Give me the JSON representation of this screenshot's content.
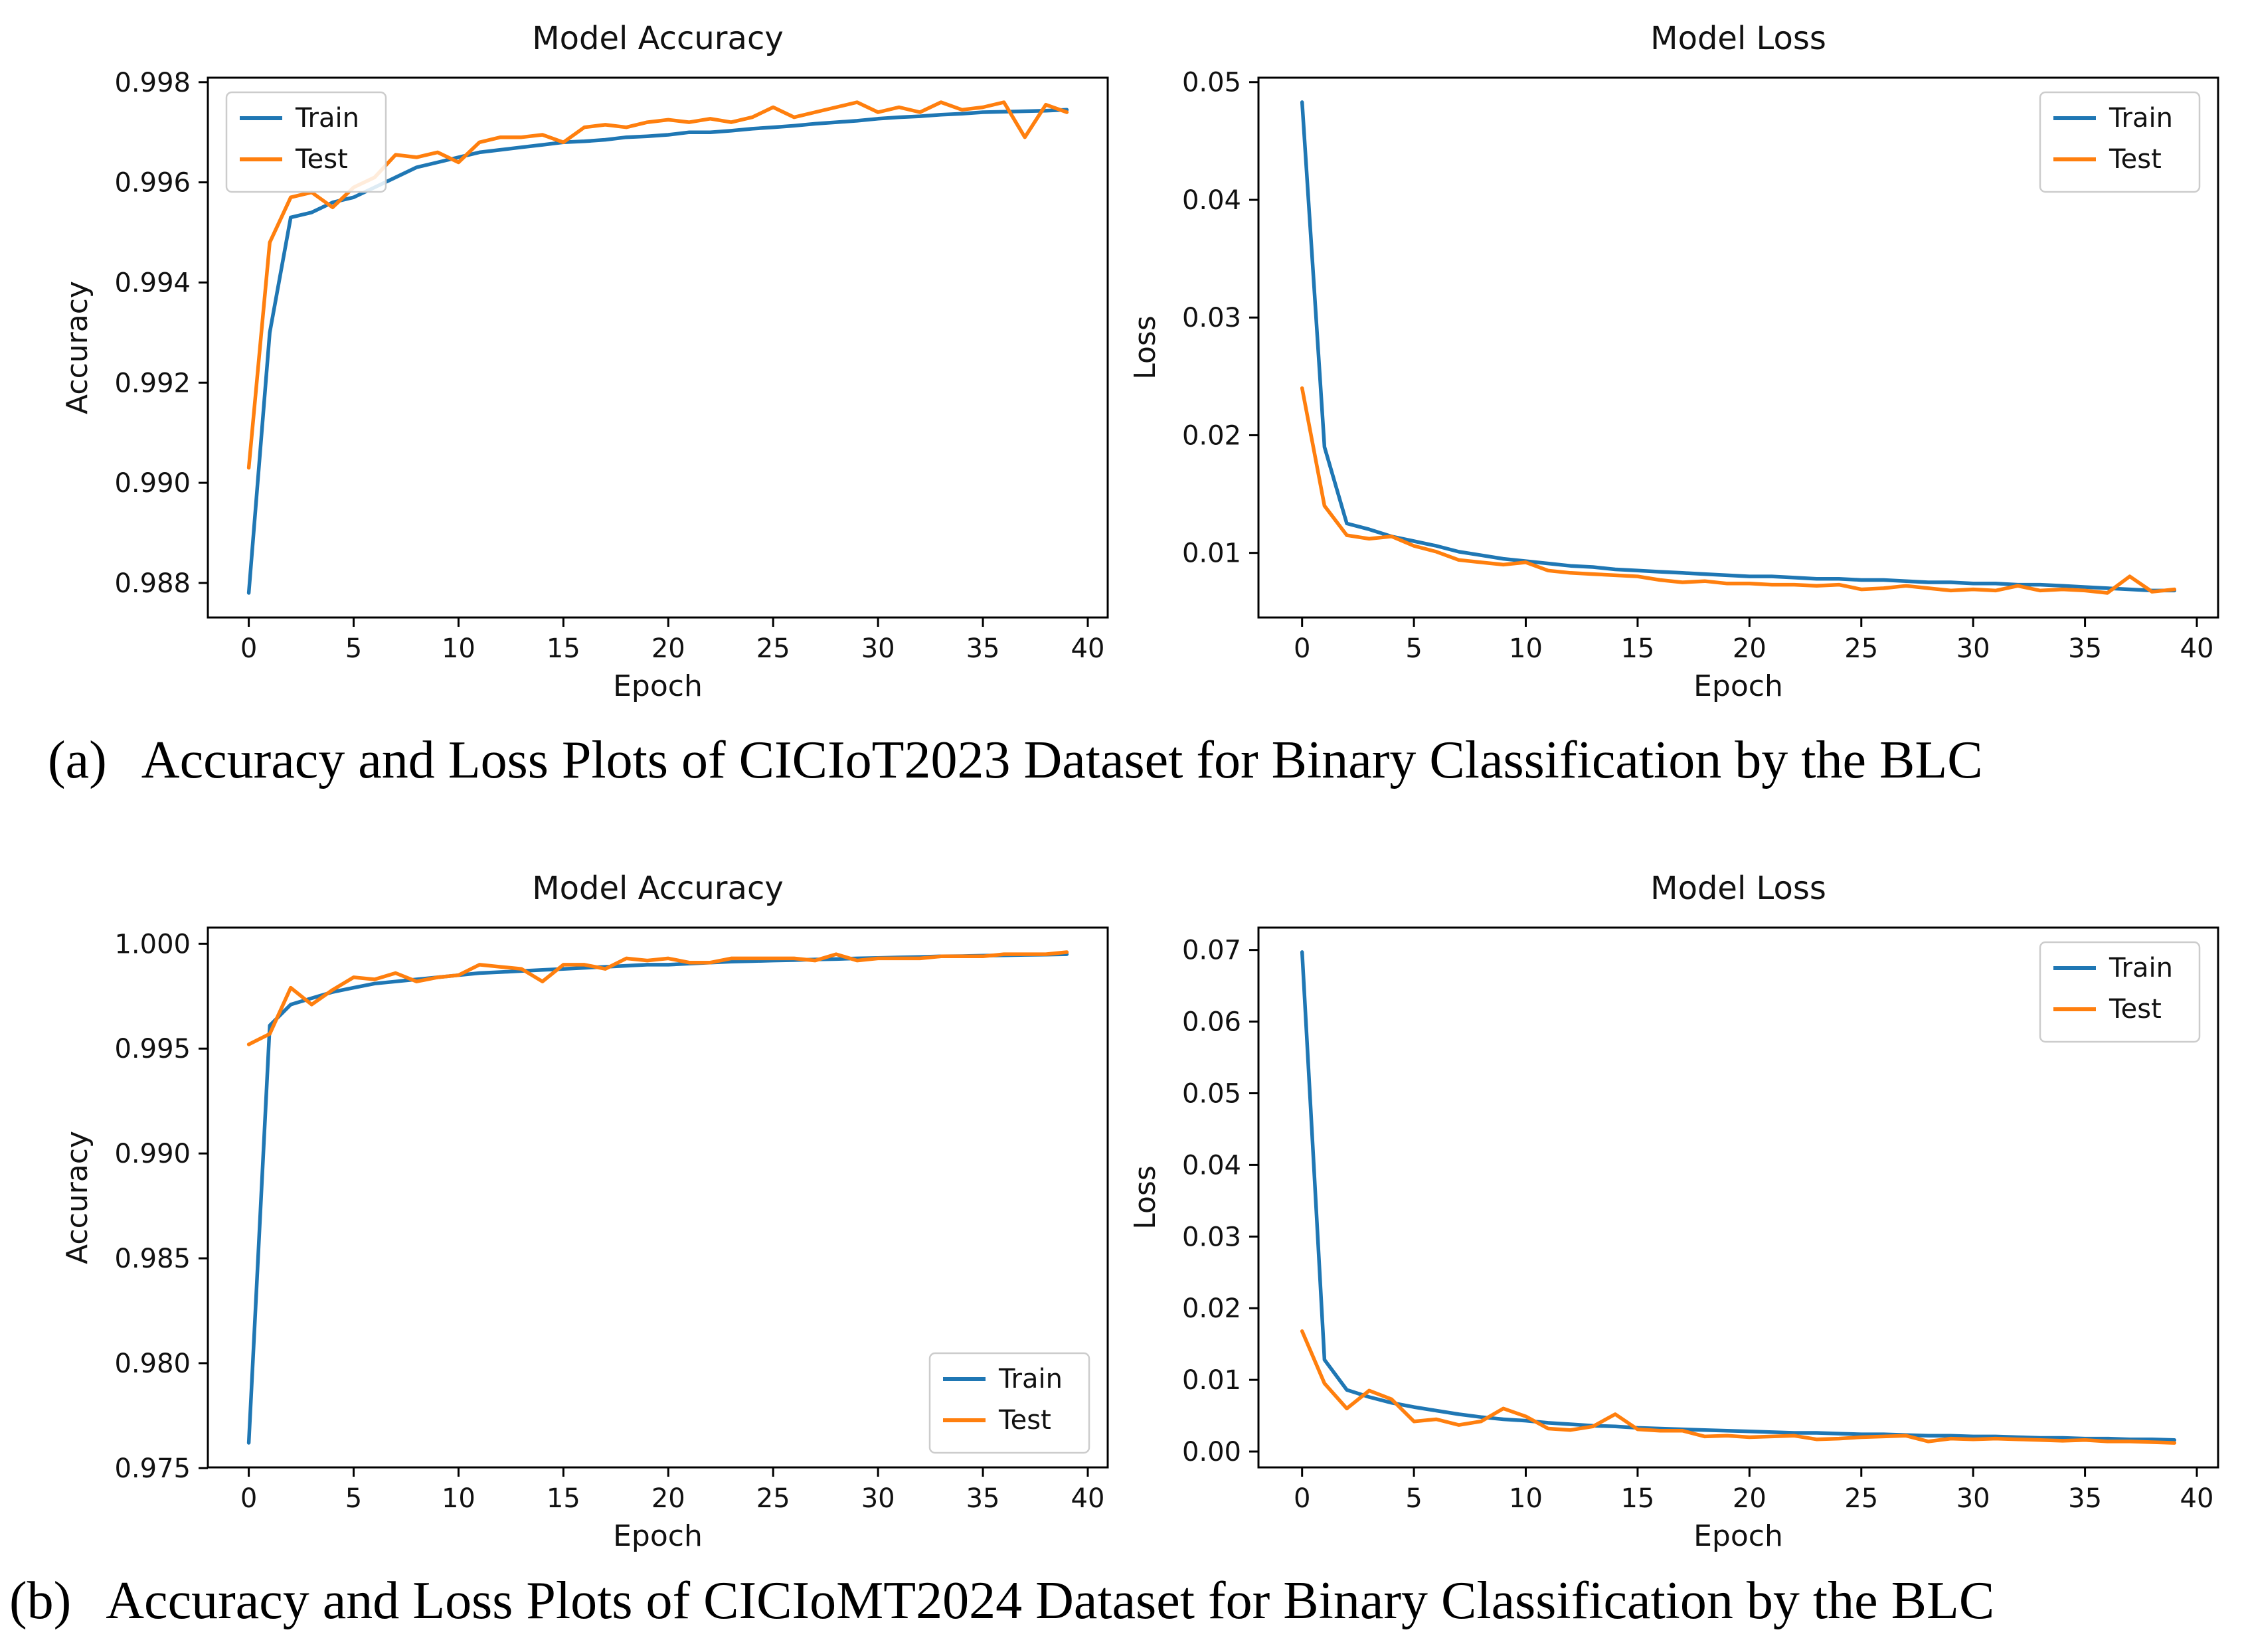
{
  "page": {
    "background": "#ffffff"
  },
  "colors": {
    "train": "#1f77b4",
    "test": "#ff7f0e",
    "spine": "#000000",
    "legend_border": "#cccccc"
  },
  "captions": {
    "a": {
      "label": "(a)",
      "text": "Accuracy and Loss Plots of CICIoT2023 Dataset for Binary Classification by the BLC"
    },
    "b": {
      "label": "(b)",
      "text": "Accuracy and Loss Plots of CICIoMT2024 Dataset for Binary Classification by the BLC"
    }
  },
  "epochs": [
    0,
    1,
    2,
    3,
    4,
    5,
    6,
    7,
    8,
    9,
    10,
    11,
    12,
    13,
    14,
    15,
    16,
    17,
    18,
    19,
    20,
    21,
    22,
    23,
    24,
    25,
    26,
    27,
    28,
    29,
    30,
    31,
    32,
    33,
    34,
    35,
    36,
    37,
    38,
    39
  ],
  "chart_data": [
    {
      "name": "accuracy-ciciot2023",
      "type": "line",
      "title": "Model Accuracy",
      "xlabel": "Epoch",
      "ylabel": "Accuracy",
      "xlim": [
        -1.95,
        40.95
      ],
      "ylim": [
        0.98731,
        0.99809
      ],
      "xticks": [
        0,
        5,
        10,
        15,
        20,
        25,
        30,
        35,
        40
      ],
      "yticks": [
        0.988,
        0.99,
        0.992,
        0.994,
        0.996,
        0.998
      ],
      "ytick_decimals": 3,
      "grid": false,
      "legend_pos": "upper-left",
      "series": [
        {
          "name": "Train",
          "color": "#1f77b4",
          "values": [
            0.9878,
            0.993,
            0.9953,
            0.9954,
            0.9956,
            0.9957,
            0.9959,
            0.9961,
            0.9963,
            0.9964,
            0.9965,
            0.9966,
            0.99665,
            0.9967,
            0.99675,
            0.9968,
            0.99682,
            0.99685,
            0.9969,
            0.99692,
            0.99695,
            0.997,
            0.997,
            0.99703,
            0.99707,
            0.9971,
            0.99713,
            0.99717,
            0.9972,
            0.99723,
            0.99727,
            0.9973,
            0.99732,
            0.99735,
            0.99737,
            0.9974,
            0.99741,
            0.99742,
            0.99743,
            0.99745
          ]
        },
        {
          "name": "Test",
          "color": "#ff7f0e",
          "values": [
            0.9903,
            0.9948,
            0.9957,
            0.9958,
            0.9955,
            0.9959,
            0.9961,
            0.99655,
            0.9965,
            0.9966,
            0.9964,
            0.9968,
            0.9969,
            0.9969,
            0.99695,
            0.9968,
            0.9971,
            0.99715,
            0.9971,
            0.9972,
            0.99725,
            0.9972,
            0.99727,
            0.9972,
            0.9973,
            0.9975,
            0.9973,
            0.9974,
            0.9975,
            0.9976,
            0.9974,
            0.9975,
            0.9974,
            0.9976,
            0.99745,
            0.9975,
            0.9976,
            0.9969,
            0.99755,
            0.9974
          ]
        }
      ]
    },
    {
      "name": "loss-ciciot2023",
      "type": "line",
      "title": "Model Loss",
      "xlabel": "Epoch",
      "ylabel": "Loss",
      "xlim": [
        -1.95,
        40.95
      ],
      "ylim": [
        0.00451,
        0.05038
      ],
      "xticks": [
        0,
        5,
        10,
        15,
        20,
        25,
        30,
        35,
        40
      ],
      "yticks": [
        0.01,
        0.02,
        0.03,
        0.04,
        0.05
      ],
      "ytick_decimals": 2,
      "grid": false,
      "legend_pos": "upper-right",
      "series": [
        {
          "name": "Train",
          "color": "#1f77b4",
          "values": [
            0.0483,
            0.019,
            0.0125,
            0.012,
            0.0114,
            0.011,
            0.0106,
            0.0101,
            0.0098,
            0.0095,
            0.0093,
            0.0091,
            0.0089,
            0.0088,
            0.0086,
            0.0085,
            0.0084,
            0.0083,
            0.0082,
            0.0081,
            0.008,
            0.008,
            0.0079,
            0.0078,
            0.0078,
            0.0077,
            0.0077,
            0.0076,
            0.0075,
            0.0075,
            0.0074,
            0.0074,
            0.0073,
            0.0073,
            0.0072,
            0.0071,
            0.007,
            0.0069,
            0.0068,
            0.0068
          ]
        },
        {
          "name": "Test",
          "color": "#ff7f0e",
          "values": [
            0.024,
            0.014,
            0.0115,
            0.0112,
            0.0114,
            0.0106,
            0.0101,
            0.0094,
            0.0092,
            0.009,
            0.0092,
            0.0085,
            0.0083,
            0.0082,
            0.0081,
            0.008,
            0.0077,
            0.0075,
            0.0076,
            0.0074,
            0.0074,
            0.0073,
            0.0073,
            0.0072,
            0.0073,
            0.0069,
            0.007,
            0.0072,
            0.007,
            0.0068,
            0.0069,
            0.0068,
            0.0072,
            0.0068,
            0.0069,
            0.0068,
            0.0066,
            0.008,
            0.0067,
            0.0069
          ]
        }
      ]
    },
    {
      "name": "accuracy-ciciomt2024",
      "type": "line",
      "title": "Model Accuracy",
      "xlabel": "Epoch",
      "ylabel": "Accuracy",
      "xlim": [
        -1.95,
        40.95
      ],
      "ylim": [
        0.97503,
        1.00077
      ],
      "xticks": [
        0,
        5,
        10,
        15,
        20,
        25,
        30,
        35,
        40
      ],
      "yticks": [
        0.975,
        0.98,
        0.985,
        0.99,
        0.995,
        1.0
      ],
      "ytick_decimals": 3,
      "grid": false,
      "legend_pos": "lower-right",
      "series": [
        {
          "name": "Train",
          "color": "#1f77b4",
          "values": [
            0.9762,
            0.9961,
            0.9971,
            0.9974,
            0.9977,
            0.9979,
            0.9981,
            0.9982,
            0.9983,
            0.9984,
            0.9985,
            0.9986,
            0.99865,
            0.9987,
            0.99875,
            0.9988,
            0.99885,
            0.9989,
            0.99895,
            0.999,
            0.999,
            0.99905,
            0.9991,
            0.99915,
            0.99917,
            0.9992,
            0.99922,
            0.99925,
            0.99927,
            0.9993,
            0.99932,
            0.99935,
            0.99937,
            0.9994,
            0.99941,
            0.99943,
            0.99945,
            0.99947,
            0.99948,
            0.9995
          ]
        },
        {
          "name": "Test",
          "color": "#ff7f0e",
          "values": [
            0.9952,
            0.9957,
            0.9979,
            0.9971,
            0.9978,
            0.9984,
            0.9983,
            0.9986,
            0.9982,
            0.9984,
            0.9985,
            0.999,
            0.9989,
            0.9988,
            0.9982,
            0.999,
            0.999,
            0.9988,
            0.9993,
            0.9992,
            0.9993,
            0.9991,
            0.9991,
            0.9993,
            0.9993,
            0.9993,
            0.9993,
            0.9992,
            0.9995,
            0.9992,
            0.9993,
            0.9993,
            0.9993,
            0.9994,
            0.9994,
            0.9994,
            0.9995,
            0.9995,
            0.9995,
            0.9996
          ]
        }
      ]
    },
    {
      "name": "loss-ciciomt2024",
      "type": "line",
      "title": "Model Loss",
      "xlabel": "Epoch",
      "ylabel": "Loss",
      "xlim": [
        -1.95,
        40.95
      ],
      "ylim": [
        -0.00222,
        0.07312
      ],
      "xticks": [
        0,
        5,
        10,
        15,
        20,
        25,
        30,
        35,
        40
      ],
      "yticks": [
        0.0,
        0.01,
        0.02,
        0.03,
        0.04,
        0.05,
        0.06,
        0.07
      ],
      "ytick_decimals": 2,
      "grid": false,
      "legend_pos": "upper-right",
      "series": [
        {
          "name": "Train",
          "color": "#1f77b4",
          "values": [
            0.0697,
            0.0128,
            0.0086,
            0.0076,
            0.0068,
            0.0062,
            0.0057,
            0.0052,
            0.0048,
            0.0045,
            0.0043,
            0.004,
            0.0038,
            0.0036,
            0.0035,
            0.0033,
            0.0032,
            0.0031,
            0.003,
            0.0029,
            0.0028,
            0.0027,
            0.0026,
            0.0026,
            0.0025,
            0.0024,
            0.0024,
            0.0023,
            0.0022,
            0.0022,
            0.0021,
            0.0021,
            0.002,
            0.0019,
            0.0019,
            0.0018,
            0.0018,
            0.0017,
            0.0017,
            0.0016
          ]
        },
        {
          "name": "Test",
          "color": "#ff7f0e",
          "values": [
            0.0168,
            0.0095,
            0.006,
            0.0085,
            0.0073,
            0.0042,
            0.0045,
            0.0037,
            0.0042,
            0.006,
            0.0049,
            0.0032,
            0.003,
            0.0035,
            0.0052,
            0.0031,
            0.0029,
            0.0029,
            0.0021,
            0.0022,
            0.002,
            0.0021,
            0.0022,
            0.0017,
            0.0018,
            0.002,
            0.0021,
            0.0022,
            0.0014,
            0.0018,
            0.0017,
            0.0018,
            0.0017,
            0.0016,
            0.0015,
            0.0016,
            0.0014,
            0.0014,
            0.0013,
            0.0012
          ]
        }
      ]
    }
  ]
}
